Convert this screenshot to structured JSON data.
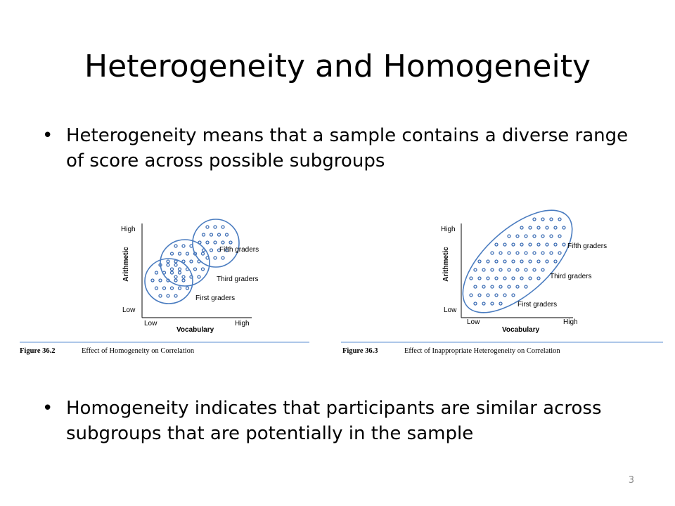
{
  "slide": {
    "title": "Heterogeneity and Homogeneity",
    "bullets": [
      "Heterogeneity means that a sample contains a diverse range of score across possible subgroups",
      "Homogeneity indicates that participants are similar across subgroups that are potentially in the sample"
    ],
    "bullet_glyph": "•",
    "slide_number": "3"
  },
  "figures": [
    {
      "y_axis_label": "Arithmetic",
      "y_high": "High",
      "y_low": "Low",
      "x_axis_label": "Vocabulary",
      "x_low": "Low",
      "x_high": "High",
      "groups": [
        "Fifth graders",
        "Third graders",
        "First graders"
      ],
      "caption_number": "Figure 36.2",
      "caption_text": "Effect of Homogeneity on Correlation"
    },
    {
      "y_axis_label": "Arithmetic",
      "y_high": "High",
      "y_low": "Low",
      "x_axis_label": "Vocabulary",
      "x_low": "Low",
      "x_high": "High",
      "groups": [
        "Fifth graders",
        "Third graders",
        "First graders"
      ],
      "caption_number": "Figure 36.3",
      "caption_text": "Effect of Inappropriate Heterogeneity on Correlation"
    }
  ],
  "colors": {
    "dot": "#3f6fb5",
    "ellipse": "#4a7cc0",
    "caption_rule": "#5b8fd0",
    "axis": "#333333"
  }
}
